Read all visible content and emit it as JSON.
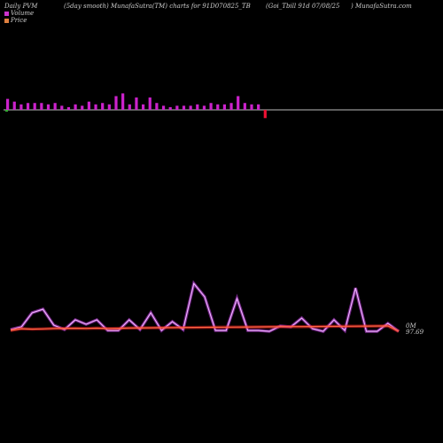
{
  "header": {
    "left": "Daily PVM",
    "mid": "(5day smooth) MunafaSutra(TM) charts for 91D070825_TB",
    "right1": "(Goi_Tbill 91d 07/08/25",
    "right2": ") MunafaSutra.com"
  },
  "legend": [
    {
      "label": "Volume",
      "color": "#cc33cc"
    },
    {
      "label": "Price",
      "color": "#e08040"
    }
  ],
  "right_labels": {
    "volume": "0M",
    "price": "97.69"
  },
  "colors": {
    "bar_up": "#cc22cc",
    "bar_down": "#ee1133",
    "bar_flat": "#33aa33",
    "volume_line": "#cc44ee",
    "price_line": "#ee2222",
    "baseline": "#bbbbbb"
  },
  "chart_data": {
    "type": "bar",
    "volume_bars": [
      8,
      6,
      4,
      5,
      5,
      5,
      4,
      5,
      3,
      2,
      4,
      3,
      6,
      4,
      5,
      4,
      10,
      12,
      4,
      9,
      4,
      9,
      5,
      3,
      2,
      3,
      3,
      3,
      4,
      3,
      5,
      4,
      4,
      5,
      10,
      5,
      4,
      4,
      -6
    ],
    "bar_directions": [
      "up",
      "up",
      "up",
      "up",
      "up",
      "up",
      "up",
      "up",
      "up",
      "up",
      "up",
      "up",
      "up",
      "up",
      "up",
      "up",
      "up",
      "up",
      "up",
      "up",
      "up",
      "up",
      "up",
      "up",
      "up",
      "up",
      "up",
      "up",
      "up",
      "up",
      "up",
      "up",
      "up",
      "up",
      "up",
      "up",
      "up",
      "up",
      "down"
    ],
    "volume_line": [
      3,
      6,
      22,
      26,
      8,
      3,
      14,
      9,
      14,
      2,
      2,
      14,
      3,
      22,
      2,
      12,
      3,
      55,
      40,
      2,
      2,
      38,
      2,
      2,
      1,
      7,
      6,
      16,
      4,
      1,
      14,
      2,
      50,
      1,
      1,
      10,
      1
    ],
    "price_line": [
      2.0,
      4.0,
      3.5,
      3.8,
      4.2,
      4.4,
      4.5,
      4.3,
      4.6,
      4.2,
      4.4,
      4.8,
      4.9,
      5.0,
      5.1,
      5.2,
      5.3,
      5.4,
      5.5,
      5.6,
      5.7,
      5.8,
      5.9,
      6.0,
      6.1,
      6.2,
      6.3,
      6.3,
      6.4,
      6.5,
      6.6,
      6.7,
      6.8,
      6.9,
      7.0,
      7.1,
      1.0
    ]
  }
}
